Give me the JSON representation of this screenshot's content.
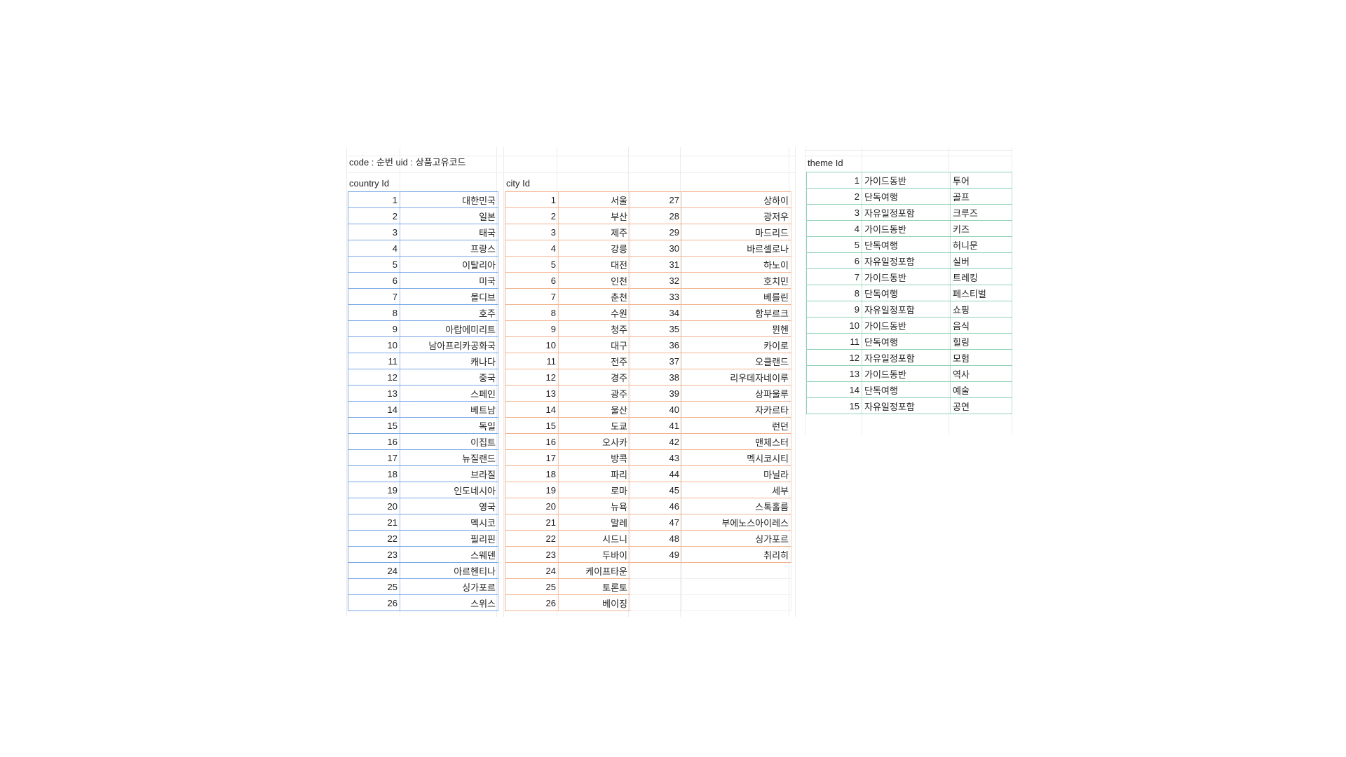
{
  "sheet": {
    "note": "code : 순번   uid : 상품고유코드"
  },
  "country": {
    "header": "country Id",
    "rows": [
      [
        "1",
        "대한민국"
      ],
      [
        "2",
        "일본"
      ],
      [
        "3",
        "태국"
      ],
      [
        "4",
        "프랑스"
      ],
      [
        "5",
        "이탈리아"
      ],
      [
        "6",
        "미국"
      ],
      [
        "7",
        "몰디브"
      ],
      [
        "8",
        "호주"
      ],
      [
        "9",
        "아랍에미리트"
      ],
      [
        "10",
        "남아프리카공화국"
      ],
      [
        "11",
        "캐나다"
      ],
      [
        "12",
        "중국"
      ],
      [
        "13",
        "스페인"
      ],
      [
        "14",
        "베트남"
      ],
      [
        "15",
        "독일"
      ],
      [
        "16",
        "이집트"
      ],
      [
        "17",
        "뉴질랜드"
      ],
      [
        "18",
        "브라질"
      ],
      [
        "19",
        "인도네시아"
      ],
      [
        "20",
        "영국"
      ],
      [
        "21",
        "멕시코"
      ],
      [
        "22",
        "필리핀"
      ],
      [
        "23",
        "스웨덴"
      ],
      [
        "24",
        "아르헨티나"
      ],
      [
        "25",
        "싱가포르"
      ],
      [
        "26",
        "스위스"
      ]
    ]
  },
  "city": {
    "header": "city Id",
    "rows": [
      [
        "1",
        "서울",
        "27",
        "상하이"
      ],
      [
        "2",
        "부산",
        "28",
        "광저우"
      ],
      [
        "3",
        "제주",
        "29",
        "마드리드"
      ],
      [
        "4",
        "강릉",
        "30",
        "바르셀로나"
      ],
      [
        "5",
        "대전",
        "31",
        "하노이"
      ],
      [
        "6",
        "인천",
        "32",
        "호치민"
      ],
      [
        "7",
        "춘천",
        "33",
        "베를린"
      ],
      [
        "8",
        "수원",
        "34",
        "함부르크"
      ],
      [
        "9",
        "청주",
        "35",
        "뮌헨"
      ],
      [
        "10",
        "대구",
        "36",
        "카이로"
      ],
      [
        "11",
        "전주",
        "37",
        "오클랜드"
      ],
      [
        "12",
        "경주",
        "38",
        "리우데자네이루"
      ],
      [
        "13",
        "광주",
        "39",
        "상파울루"
      ],
      [
        "14",
        "울산",
        "40",
        "자카르타"
      ],
      [
        "15",
        "도쿄",
        "41",
        "런던"
      ],
      [
        "16",
        "오사카",
        "42",
        "맨체스터"
      ],
      [
        "17",
        "방콕",
        "43",
        "멕시코시티"
      ],
      [
        "18",
        "파리",
        "44",
        "마닐라"
      ],
      [
        "19",
        "로마",
        "45",
        "세부"
      ],
      [
        "20",
        "뉴욕",
        "46",
        "스톡홀름"
      ],
      [
        "21",
        "말레",
        "47",
        "부에노스아이레스"
      ],
      [
        "22",
        "시드니",
        "48",
        "싱가포르"
      ],
      [
        "23",
        "두바이",
        "49",
        "취리히"
      ],
      [
        "24",
        "케이프타운",
        "",
        ""
      ],
      [
        "25",
        "토론토",
        "",
        ""
      ],
      [
        "26",
        "베이징",
        "",
        ""
      ]
    ]
  },
  "theme": {
    "header": "theme Id",
    "rows": [
      [
        "1",
        "가이드동반",
        "투어"
      ],
      [
        "2",
        "단독여행",
        "골프"
      ],
      [
        "3",
        "자유일정포함",
        "크루즈"
      ],
      [
        "4",
        "가이드동반",
        "키즈"
      ],
      [
        "5",
        "단독여행",
        "허니문"
      ],
      [
        "6",
        "자유일정포함",
        "실버"
      ],
      [
        "7",
        "가이드동반",
        "트레킹"
      ],
      [
        "8",
        "단독여행",
        "페스티벌"
      ],
      [
        "9",
        "자유일정포함",
        "쇼핑"
      ],
      [
        "10",
        "가이드동반",
        "음식"
      ],
      [
        "11",
        "단독여행",
        "힐링"
      ],
      [
        "12",
        "자유일정포함",
        "모험"
      ],
      [
        "13",
        "가이드동반",
        "역사"
      ],
      [
        "14",
        "단독여행",
        "예술"
      ],
      [
        "15",
        "자유일정포함",
        "공연"
      ]
    ]
  }
}
